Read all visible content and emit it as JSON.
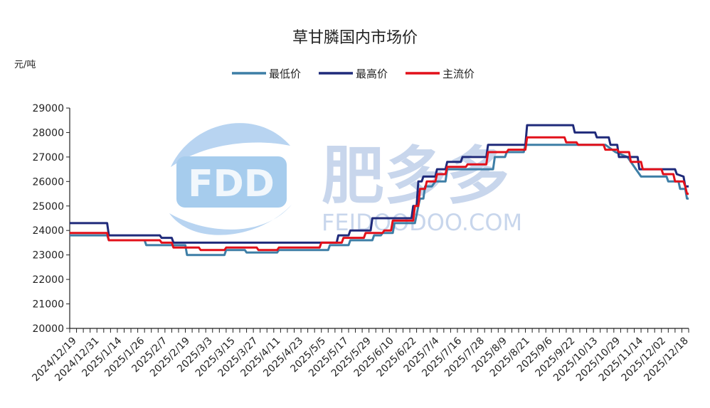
{
  "chart_data": {
    "type": "line",
    "title": "草甘膦国内市场价",
    "unit_label": "元/吨",
    "ylim": [
      20000,
      29000
    ],
    "yticks": [
      20000,
      21000,
      22000,
      23000,
      24000,
      25000,
      26000,
      27000,
      28000,
      29000
    ],
    "x_start": "2024-12-19",
    "x_end": "2025-12-18",
    "xtick_labels": [
      "2024/12/19",
      "2024/12/31",
      "2025/1/14",
      "2025/1/26",
      "2025/2/7",
      "2025/2/19",
      "2025/3/3",
      "2025/3/15",
      "2025/3/27",
      "2025/4/11",
      "2025/4/23",
      "2025/5/5",
      "2025/5/17",
      "2025/5/29",
      "2025/6/10",
      "2025/6/22",
      "2025/7/4",
      "2025/7/16",
      "2025/7/28",
      "2025/8/9",
      "2025/8/21",
      "2025/9/6",
      "2025/9/22",
      "2025/10/13",
      "2025/10/29",
      "2025/11/14",
      "2025/12/02",
      "2025/12/18"
    ],
    "legend_position": "top-center",
    "series": [
      {
        "name": "最低价",
        "color": "#3d7ea6",
        "points": [
          [
            "2024-12-19",
            23800
          ],
          [
            "2025-01-10",
            23800
          ],
          [
            "2025-01-11",
            23600
          ],
          [
            "2025-02-01",
            23600
          ],
          [
            "2025-02-02",
            23400
          ],
          [
            "2025-02-25",
            23400
          ],
          [
            "2025-02-26",
            23000
          ],
          [
            "2025-03-20",
            23000
          ],
          [
            "2025-03-21",
            23200
          ],
          [
            "2025-04-01",
            23200
          ],
          [
            "2025-04-02",
            23100
          ],
          [
            "2025-04-20",
            23100
          ],
          [
            "2025-04-21",
            23200
          ],
          [
            "2025-05-20",
            23200
          ],
          [
            "2025-05-21",
            23400
          ],
          [
            "2025-06-01",
            23400
          ],
          [
            "2025-06-02",
            23600
          ],
          [
            "2025-06-15",
            23600
          ],
          [
            "2025-06-16",
            23800
          ],
          [
            "2025-06-20",
            23800
          ],
          [
            "2025-06-21",
            23900
          ],
          [
            "2025-06-27",
            23900
          ],
          [
            "2025-06-28",
            24300
          ],
          [
            "2025-07-10",
            24300
          ],
          [
            "2025-07-12",
            25000
          ],
          [
            "2025-07-13",
            25300
          ],
          [
            "2025-07-15",
            25300
          ],
          [
            "2025-07-16",
            25800
          ],
          [
            "2025-07-20",
            25800
          ],
          [
            "2025-07-22",
            26000
          ],
          [
            "2025-07-28",
            26000
          ],
          [
            "2025-07-29",
            26500
          ],
          [
            "2025-08-25",
            26500
          ],
          [
            "2025-08-26",
            27000
          ],
          [
            "2025-09-01",
            27000
          ],
          [
            "2025-09-02",
            27200
          ],
          [
            "2025-09-12",
            27200
          ],
          [
            "2025-09-13",
            27500
          ],
          [
            "2025-10-25",
            27500
          ],
          [
            "2025-10-30",
            27500
          ],
          [
            "2025-11-05",
            27200
          ],
          [
            "2025-11-12",
            27000
          ],
          [
            "2025-11-17",
            26500
          ],
          [
            "2025-11-20",
            26200
          ],
          [
            "2025-12-05",
            26200
          ],
          [
            "2025-12-06",
            26000
          ],
          [
            "2025-12-12",
            26000
          ],
          [
            "2025-12-13",
            25700
          ],
          [
            "2025-12-16",
            25700
          ],
          [
            "2025-12-17",
            25300
          ],
          [
            "2025-12-18",
            25300
          ]
        ]
      },
      {
        "name": "最高价",
        "color": "#1f2a7a",
        "points": [
          [
            "2024-12-19",
            24300
          ],
          [
            "2025-01-10",
            24300
          ],
          [
            "2025-01-11",
            23800
          ],
          [
            "2025-02-10",
            23800
          ],
          [
            "2025-02-11",
            23700
          ],
          [
            "2025-02-17",
            23700
          ],
          [
            "2025-02-18",
            23500
          ],
          [
            "2025-05-25",
            23500
          ],
          [
            "2025-05-26",
            23800
          ],
          [
            "2025-06-01",
            23800
          ],
          [
            "2025-06-02",
            24000
          ],
          [
            "2025-06-14",
            24000
          ],
          [
            "2025-06-15",
            24500
          ],
          [
            "2025-07-08",
            24500
          ],
          [
            "2025-07-09",
            25000
          ],
          [
            "2025-07-11",
            25000
          ],
          [
            "2025-07-12",
            26000
          ],
          [
            "2025-07-14",
            26000
          ],
          [
            "2025-07-15",
            26200
          ],
          [
            "2025-07-22",
            26200
          ],
          [
            "2025-07-23",
            26500
          ],
          [
            "2025-07-28",
            26500
          ],
          [
            "2025-07-29",
            26800
          ],
          [
            "2025-08-06",
            26800
          ],
          [
            "2025-08-07",
            27000
          ],
          [
            "2025-08-21",
            27000
          ],
          [
            "2025-08-22",
            27500
          ],
          [
            "2025-09-13",
            27500
          ],
          [
            "2025-09-14",
            28300
          ],
          [
            "2025-10-11",
            28300
          ],
          [
            "2025-10-12",
            28000
          ],
          [
            "2025-10-24",
            28000
          ],
          [
            "2025-10-25",
            27800
          ],
          [
            "2025-11-01",
            27800
          ],
          [
            "2025-11-02",
            27500
          ],
          [
            "2025-11-06",
            27500
          ],
          [
            "2025-11-07",
            27000
          ],
          [
            "2025-11-18",
            27000
          ],
          [
            "2025-11-19",
            26500
          ],
          [
            "2025-12-10",
            26500
          ],
          [
            "2025-12-11",
            26300
          ],
          [
            "2025-12-15",
            26200
          ],
          [
            "2025-12-16",
            25800
          ],
          [
            "2025-12-18",
            25800
          ]
        ]
      },
      {
        "name": "主流价",
        "color": "#e2101a",
        "points": [
          [
            "2024-12-19",
            23900
          ],
          [
            "2025-01-10",
            23900
          ],
          [
            "2025-01-11",
            23600
          ],
          [
            "2025-02-10",
            23600
          ],
          [
            "2025-02-11",
            23500
          ],
          [
            "2025-02-17",
            23500
          ],
          [
            "2025-02-18",
            23300
          ],
          [
            "2025-03-05",
            23300
          ],
          [
            "2025-03-06",
            23200
          ],
          [
            "2025-03-20",
            23200
          ],
          [
            "2025-03-21",
            23300
          ],
          [
            "2025-04-08",
            23300
          ],
          [
            "2025-04-09",
            23200
          ],
          [
            "2025-04-20",
            23200
          ],
          [
            "2025-04-21",
            23300
          ],
          [
            "2025-05-15",
            23300
          ],
          [
            "2025-05-16",
            23500
          ],
          [
            "2025-05-28",
            23500
          ],
          [
            "2025-05-29",
            23700
          ],
          [
            "2025-06-10",
            23700
          ],
          [
            "2025-06-11",
            23900
          ],
          [
            "2025-06-21",
            23900
          ],
          [
            "2025-06-22",
            24000
          ],
          [
            "2025-06-26",
            24000
          ],
          [
            "2025-06-27",
            24400
          ],
          [
            "2025-07-09",
            24400
          ],
          [
            "2025-07-10",
            25000
          ],
          [
            "2025-07-12",
            25000
          ],
          [
            "2025-07-13",
            25700
          ],
          [
            "2025-07-16",
            25700
          ],
          [
            "2025-07-17",
            26000
          ],
          [
            "2025-07-22",
            26000
          ],
          [
            "2025-07-23",
            26300
          ],
          [
            "2025-07-28",
            26300
          ],
          [
            "2025-07-29",
            26600
          ],
          [
            "2025-08-09",
            26600
          ],
          [
            "2025-08-10",
            26700
          ],
          [
            "2025-08-21",
            26700
          ],
          [
            "2025-08-22",
            27200
          ],
          [
            "2025-09-02",
            27200
          ],
          [
            "2025-09-03",
            27300
          ],
          [
            "2025-09-13",
            27300
          ],
          [
            "2025-09-14",
            27800
          ],
          [
            "2025-10-06",
            27800
          ],
          [
            "2025-10-07",
            27600
          ],
          [
            "2025-10-13",
            27600
          ],
          [
            "2025-10-14",
            27500
          ],
          [
            "2025-10-29",
            27500
          ],
          [
            "2025-10-30",
            27300
          ],
          [
            "2025-11-06",
            27300
          ],
          [
            "2025-11-07",
            27200
          ],
          [
            "2025-11-13",
            27200
          ],
          [
            "2025-11-14",
            26800
          ],
          [
            "2025-11-20",
            26800
          ],
          [
            "2025-11-21",
            26500
          ],
          [
            "2025-12-02",
            26500
          ],
          [
            "2025-12-03",
            26300
          ],
          [
            "2025-12-09",
            26300
          ],
          [
            "2025-12-10",
            26000
          ],
          [
            "2025-12-15",
            26000
          ],
          [
            "2025-12-16",
            25800
          ],
          [
            "2025-12-17",
            25500
          ],
          [
            "2025-12-18",
            25500
          ]
        ]
      }
    ]
  },
  "watermark": {
    "logo": "FDD",
    "brand": "肥多多",
    "domain": "FEIDOODOO.COM"
  }
}
